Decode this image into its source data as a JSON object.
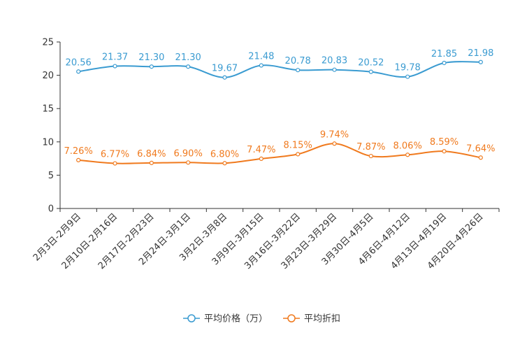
{
  "chart_data": {
    "type": "line",
    "categories": [
      "2月3日-2月9日",
      "2月10日-2月16日",
      "2月17日-2月23日",
      "2月24日-3月1日",
      "3月2日-3月8日",
      "3月9日-3月15日",
      "3月16日-3月22日",
      "3月23日-3月29日",
      "3月30日-4月5日",
      "4月6日-4月12日",
      "4月13日-4月19日",
      "4月20日-4月26日"
    ],
    "ylim": [
      0,
      25
    ],
    "yticks": [
      0,
      5,
      10,
      15,
      20,
      25
    ],
    "series": [
      {
        "name": "平均价格（万）",
        "color": "#3a9bd1",
        "values": [
          20.56,
          21.37,
          21.3,
          21.3,
          19.67,
          21.48,
          20.78,
          20.83,
          20.52,
          19.78,
          21.85,
          21.98
        ],
        "labels": [
          "20.56",
          "21.37",
          "21.30",
          "21.30",
          "19.67",
          "21.48",
          "20.78",
          "20.83",
          "20.52",
          "19.78",
          "21.85",
          "21.98"
        ]
      },
      {
        "name": "平均折扣",
        "color": "#f07a1e",
        "values": [
          7.26,
          6.77,
          6.84,
          6.9,
          6.8,
          7.47,
          8.15,
          9.74,
          7.87,
          8.06,
          8.59,
          7.64
        ],
        "labels": [
          "7.26%",
          "6.77%",
          "6.84%",
          "6.90%",
          "6.80%",
          "7.47%",
          "8.15%",
          "9.74%",
          "7.87%",
          "8.06%",
          "8.59%",
          "7.64%"
        ]
      }
    ],
    "title": "",
    "xlabel": "",
    "ylabel": "",
    "legend_position": "bottom-center"
  }
}
